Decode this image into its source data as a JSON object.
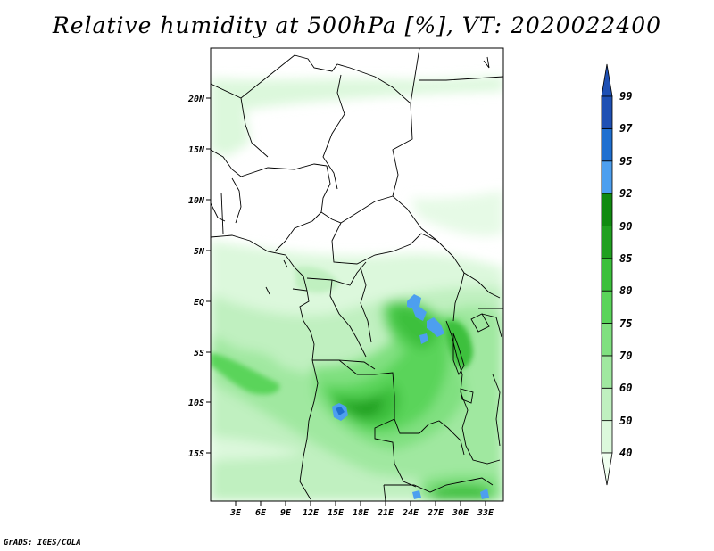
{
  "title": "Relative humidity at 500hPa [%], VT: 2020022400",
  "credit": "GrADS: IGES/COLA",
  "map": {
    "lat_ticks": [
      "20N",
      "15N",
      "10N",
      "5N",
      "EQ",
      "5S",
      "10S",
      "15S"
    ],
    "lon_ticks": [
      "3E",
      "6E",
      "9E",
      "12E",
      "15E",
      "18E",
      "21E",
      "24E",
      "27E",
      "30E",
      "33E"
    ]
  },
  "colorbar": {
    "labels": [
      "99",
      "97",
      "95",
      "92",
      "90",
      "85",
      "80",
      "75",
      "70",
      "60",
      "50",
      "40"
    ],
    "colors": [
      "#f0fff0",
      "#dcf8dc",
      "#c0f0c0",
      "#a0e8a0",
      "#80e080",
      "#5ad45a",
      "#3cc03c",
      "#20a020",
      "#108a10",
      "#4d9fef",
      "#1e6fd0",
      "#1e50b4"
    ]
  }
}
